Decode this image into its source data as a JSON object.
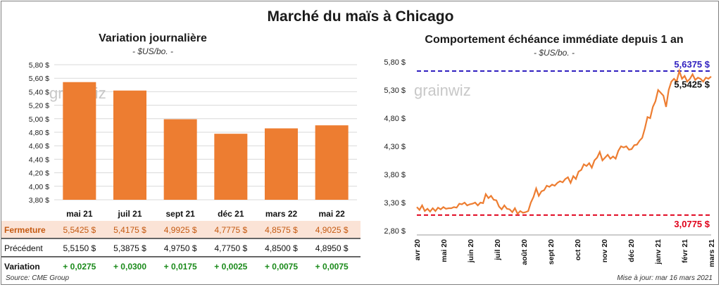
{
  "title": "Marché du maïs à Chicago",
  "left_chart": {
    "title": "Variation  journalière",
    "unit": "- $US/bo. -"
  },
  "right_chart": {
    "title": "Comportement  échéance  immédiate  depuis 1 an",
    "unit": "- $US/bo. -"
  },
  "watermark": "grainwiz",
  "table": {
    "row_labels": {
      "close": "Fermeture",
      "prev": "Précédent",
      "change": "Variation"
    },
    "close": [
      "5,5425  $",
      "5,4175  $",
      "4,9925  $",
      "4,7775  $",
      "4,8575  $",
      "4,9025  $"
    ],
    "prev": [
      "5,5150  $",
      "5,3875  $",
      "4,9750  $",
      "4,7750  $",
      "4,8500  $",
      "4,8950  $"
    ],
    "change": [
      "+ 0,0275",
      "+ 0,0300",
      "+ 0,0175",
      "+ 0,0025",
      "+ 0,0075",
      "+ 0,0075"
    ]
  },
  "source": "Source: CME Group",
  "updated": "Mise à jour: mar 16 mars 2021",
  "colors": {
    "bar": "#ed7d31",
    "line": "#ed7d31",
    "high": "#2f1fbf",
    "low": "#e0001a",
    "positive": "#1a8a1a",
    "row_highlight": "#fbe3d6"
  },
  "chart_data": [
    {
      "type": "bar",
      "categories": [
        "mai 21",
        "juil 21",
        "sept 21",
        "déc 21",
        "mars 22",
        "mai 22"
      ],
      "values": [
        5.5425,
        5.4175,
        4.9925,
        4.7775,
        4.8575,
        4.9025
      ],
      "ylim": [
        3.8,
        5.8
      ],
      "yticks": [
        "3,80 $",
        "4,00 $",
        "4,20 $",
        "4,40 $",
        "4,60 $",
        "4,80 $",
        "5,00 $",
        "5,20 $",
        "5,40 $",
        "5,60 $",
        "5,80 $"
      ],
      "grid": true
    },
    {
      "type": "line",
      "xticks": [
        "avr 20",
        "mai 20",
        "juin 20",
        "juil 20",
        "août 20",
        "sept 20",
        "oct 20",
        "nov 20",
        "déc 20",
        "janv 21",
        "févr 21",
        "mars 21"
      ],
      "yticks": [
        "2,80 $",
        "3,30 $",
        "3,80 $",
        "4,30 $",
        "4,80 $",
        "5,30 $",
        "5,80 $"
      ],
      "ylim": [
        2.8,
        5.8
      ],
      "high": 5.6375,
      "high_label": "5,6375 $",
      "low": 3.0775,
      "low_label": "3,0775 $",
      "last": 5.5425,
      "last_label": "5,5425 $",
      "values": [
        3.22,
        3.17,
        3.25,
        3.15,
        3.19,
        3.14,
        3.2,
        3.15,
        3.21,
        3.18,
        3.22,
        3.19,
        3.2,
        3.2,
        3.22,
        3.21,
        3.28,
        3.27,
        3.3,
        3.25,
        3.27,
        3.28,
        3.3,
        3.25,
        3.3,
        3.29,
        3.45,
        3.38,
        3.42,
        3.35,
        3.34,
        3.23,
        3.18,
        3.25,
        3.19,
        3.18,
        3.13,
        3.2,
        3.1,
        3.15,
        3.12,
        3.13,
        3.15,
        3.3,
        3.4,
        3.55,
        3.42,
        3.5,
        3.52,
        3.6,
        3.58,
        3.62,
        3.6,
        3.65,
        3.68,
        3.66,
        3.72,
        3.75,
        3.65,
        3.77,
        3.72,
        3.85,
        3.88,
        3.98,
        3.95,
        4.0,
        3.92,
        4.05,
        4.1,
        4.2,
        4.05,
        4.1,
        4.15,
        4.08,
        4.12,
        4.08,
        4.22,
        4.3,
        4.28,
        4.3,
        4.24,
        4.25,
        4.32,
        4.33,
        4.4,
        4.45,
        4.62,
        4.82,
        4.8,
        5.0,
        5.1,
        5.3,
        5.25,
        5.2,
        5.0,
        5.3,
        5.45,
        5.5,
        5.45,
        5.64,
        5.5,
        5.55,
        5.45,
        5.5,
        5.58,
        5.48,
        5.52,
        5.5,
        5.45,
        5.52,
        5.5,
        5.54
      ]
    }
  ]
}
